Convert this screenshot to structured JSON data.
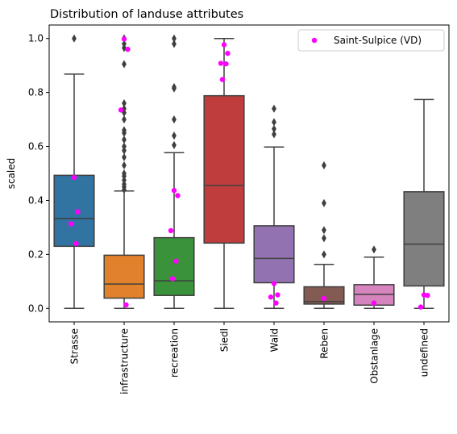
{
  "chart_data": {
    "type": "box",
    "title": "Distribution of landuse attributes",
    "xlabel": "",
    "ylabel": "scaled",
    "ylim": [
      -0.05,
      1.05
    ],
    "yticks": [
      0.0,
      0.2,
      0.4,
      0.6,
      0.8,
      1.0
    ],
    "ytick_labels": [
      "0.0",
      "0.2",
      "0.4",
      "0.6",
      "0.8",
      "1.0"
    ],
    "grid": false,
    "legend": {
      "position": "top-right",
      "entries": [
        {
          "label": "Saint-Sulpice (VD)",
          "color": "#ff00ff",
          "marker": "circle"
        }
      ]
    },
    "categories": [
      "Strasse",
      "infrastructure",
      "recreation",
      "Siedl",
      "Wald",
      "Reben",
      "Obstanlage",
      "undefined"
    ],
    "boxes": [
      {
        "name": "Strasse",
        "color": "#3274a1",
        "whisker_low": 0.0,
        "q1": 0.23,
        "median": 0.333,
        "q3": 0.493,
        "whisker_high": 0.868,
        "outliers": [
          1.0
        ]
      },
      {
        "name": "infrastructure",
        "color": "#e1812c",
        "whisker_low": 0.0,
        "q1": 0.038,
        "median": 0.09,
        "q3": 0.197,
        "whisker_high": 0.435,
        "outliers": [
          0.44,
          0.45,
          0.46,
          0.475,
          0.49,
          0.5,
          0.53,
          0.56,
          0.585,
          0.6,
          0.625,
          0.65,
          0.66,
          0.7,
          0.725,
          0.74,
          0.76,
          0.905,
          0.965,
          0.98,
          1.0,
          1.0
        ]
      },
      {
        "name": "recreation",
        "color": "#3a923a",
        "whisker_low": 0.0,
        "q1": 0.048,
        "median": 0.102,
        "q3": 0.262,
        "whisker_high": 0.577,
        "outliers": [
          0.605,
          0.64,
          0.7,
          0.815,
          0.82,
          0.98,
          1.0
        ]
      },
      {
        "name": "Siedl",
        "color": "#c03d3e",
        "whisker_low": 0.0,
        "q1": 0.242,
        "median": 0.456,
        "q3": 0.788,
        "whisker_high": 1.0,
        "outliers": []
      },
      {
        "name": "Wald",
        "color": "#9372b2",
        "whisker_low": 0.0,
        "q1": 0.095,
        "median": 0.185,
        "q3": 0.306,
        "whisker_high": 0.598,
        "outliers": [
          0.645,
          0.665,
          0.69,
          0.74
        ]
      },
      {
        "name": "Reben",
        "color": "#845b53",
        "whisker_low": 0.0,
        "q1": 0.016,
        "median": 0.025,
        "q3": 0.08,
        "whisker_high": 0.163,
        "outliers": [
          0.2,
          0.26,
          0.29,
          0.39,
          0.53
        ]
      },
      {
        "name": "Obstanlage",
        "color": "#d684bd",
        "whisker_low": 0.0,
        "q1": 0.012,
        "median": 0.052,
        "q3": 0.088,
        "whisker_high": 0.19,
        "outliers": [
          0.218
        ]
      },
      {
        "name": "undefined",
        "color": "#7f7f7f",
        "whisker_low": 0.0,
        "q1": 0.083,
        "median": 0.238,
        "q3": 0.432,
        "whisker_high": 0.774,
        "outliers": []
      }
    ],
    "highlight_series": {
      "name": "Saint-Sulpice (VD)",
      "color": "#ff00ff",
      "points": [
        {
          "category": "Strasse",
          "y": 0.485
        },
        {
          "category": "Strasse",
          "y": 0.358
        },
        {
          "category": "Strasse",
          "y": 0.313
        },
        {
          "category": "Strasse",
          "y": 0.24
        },
        {
          "category": "infrastructure",
          "y": 0.998
        },
        {
          "category": "infrastructure",
          "y": 0.96
        },
        {
          "category": "infrastructure",
          "y": 0.735
        },
        {
          "category": "infrastructure",
          "y": 0.013
        },
        {
          "category": "recreation",
          "y": 0.437
        },
        {
          "category": "recreation",
          "y": 0.418
        },
        {
          "category": "recreation",
          "y": 0.288
        },
        {
          "category": "recreation",
          "y": 0.175
        },
        {
          "category": "recreation",
          "y": 0.11
        },
        {
          "category": "Siedl",
          "y": 0.977
        },
        {
          "category": "Siedl",
          "y": 0.945
        },
        {
          "category": "Siedl",
          "y": 0.908
        },
        {
          "category": "Siedl",
          "y": 0.906
        },
        {
          "category": "Siedl",
          "y": 0.848
        },
        {
          "category": "Wald",
          "y": 0.092
        },
        {
          "category": "Wald",
          "y": 0.05
        },
        {
          "category": "Wald",
          "y": 0.042
        },
        {
          "category": "Wald",
          "y": 0.02
        },
        {
          "category": "Reben",
          "y": 0.037
        },
        {
          "category": "Obstanlage",
          "y": 0.02
        },
        {
          "category": "undefined",
          "y": 0.05
        },
        {
          "category": "undefined",
          "y": 0.048
        },
        {
          "category": "undefined",
          "y": 0.005
        }
      ]
    }
  }
}
